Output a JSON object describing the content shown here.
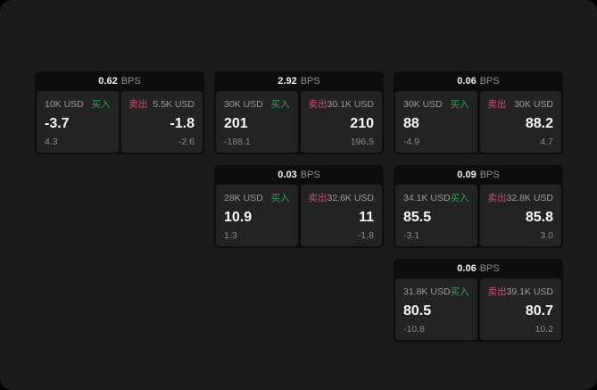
{
  "labels": {
    "bps_unit": "BPS",
    "buy": "买入",
    "sell": "卖出"
  },
  "colors": {
    "page_background": "#1b1b1b",
    "card_background": "#0d0d0d",
    "panel_background": "#232323",
    "buy_green": "#2fa35c",
    "sell_rose": "#ca4f6e"
  },
  "cards": [
    {
      "bps": "0.62",
      "buy": {
        "amount": "10K USD",
        "value": "-3.7",
        "sub": "4.3"
      },
      "sell": {
        "amount": "5.5K USD",
        "value": "-1.8",
        "sub": "-2.6"
      }
    },
    {
      "bps": "2.92",
      "buy": {
        "amount": "30K USD",
        "value": "201",
        "sub": "-188.1"
      },
      "sell": {
        "amount": "30.1K USD",
        "value": "210",
        "sub": "196.5"
      }
    },
    {
      "bps": "0.06",
      "buy": {
        "amount": "30K USD",
        "value": "88",
        "sub": "-4.9"
      },
      "sell": {
        "amount": "30K USD",
        "value": "88.2",
        "sub": "4.7"
      }
    },
    {
      "bps": "0.03",
      "buy": {
        "amount": "28K USD",
        "value": "10.9",
        "sub": "1.3"
      },
      "sell": {
        "amount": "32.6K USD",
        "value": "11",
        "sub": "-1.8"
      }
    },
    {
      "bps": "0.09",
      "buy": {
        "amount": "34.1K USD",
        "value": "85.5",
        "sub": "-3.1"
      },
      "sell": {
        "amount": "32.8K USD",
        "value": "85.8",
        "sub": "3.0"
      }
    },
    {
      "bps": "0.06",
      "buy": {
        "amount": "31.8K USD",
        "value": "80.5",
        "sub": "-10.8"
      },
      "sell": {
        "amount": "39.1K USD",
        "value": "80.7",
        "sub": "10.2"
      }
    }
  ]
}
